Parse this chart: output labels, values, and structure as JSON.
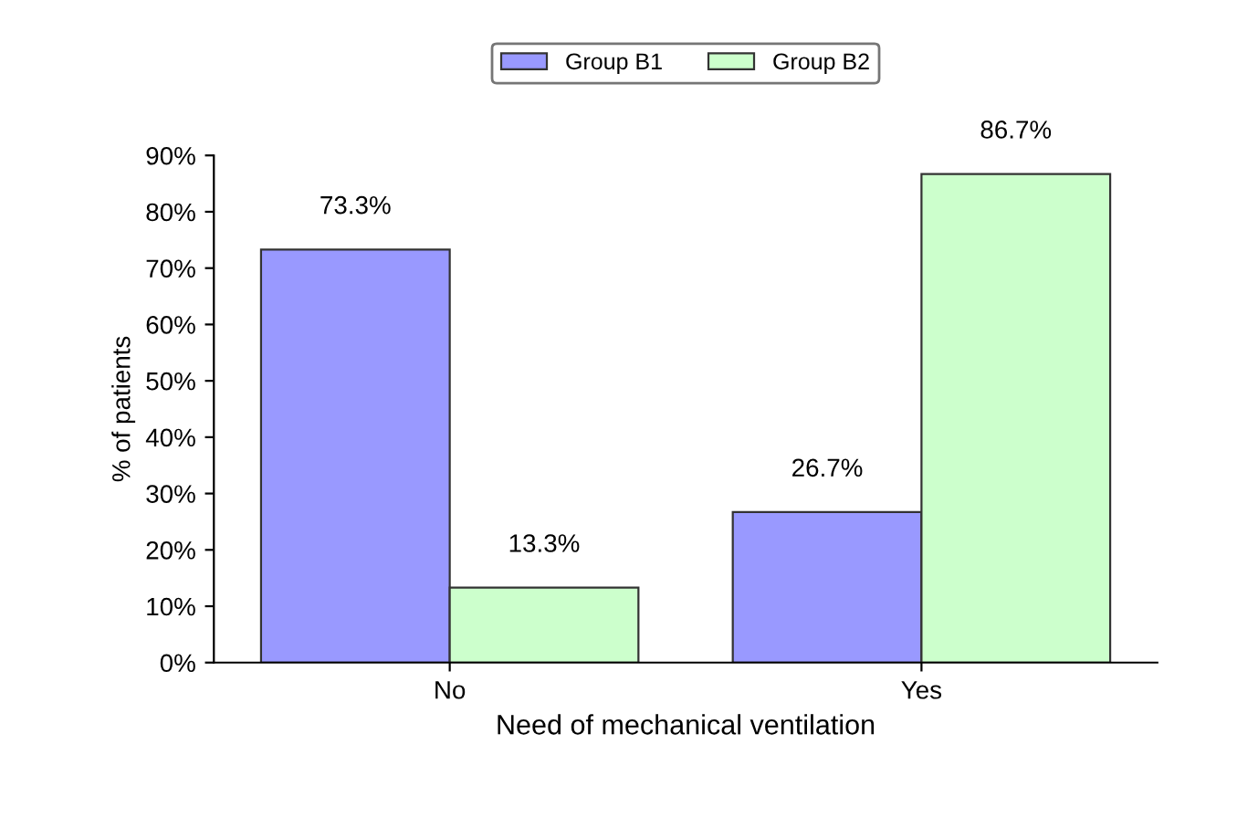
{
  "chart_data": {
    "type": "bar",
    "xlabel": "Need of mechanical ventilation",
    "ylabel": "% of patients",
    "categories": [
      "No",
      "Yes"
    ],
    "series": [
      {
        "name": "Group B1",
        "color": "#9999ff",
        "values": [
          73.3,
          26.7
        ],
        "value_labels": [
          "73.3%",
          "26.7%"
        ]
      },
      {
        "name": "Group B2",
        "color": "#ccffcc",
        "values": [
          13.3,
          86.7
        ],
        "value_labels": [
          "13.3%",
          "86.7%"
        ]
      }
    ],
    "ylim": [
      0,
      90
    ],
    "yticks": [
      {
        "value": 0,
        "label": "0%"
      },
      {
        "value": 10,
        "label": "10%"
      },
      {
        "value": 20,
        "label": "20%"
      },
      {
        "value": 30,
        "label": "30%"
      },
      {
        "value": 40,
        "label": "40%"
      },
      {
        "value": 50,
        "label": "50%"
      },
      {
        "value": 60,
        "label": "60%"
      },
      {
        "value": 70,
        "label": "70%"
      },
      {
        "value": 80,
        "label": "80%"
      },
      {
        "value": 90,
        "label": "90%"
      }
    ],
    "grid": false,
    "legend": "top"
  }
}
